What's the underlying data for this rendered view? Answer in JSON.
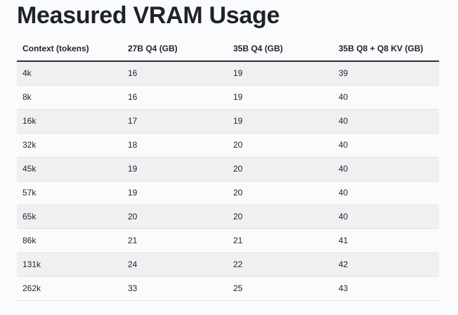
{
  "page": {
    "title": "Measured VRAM Usage"
  },
  "table": {
    "headers": [
      "Context (tokens)",
      "27B Q4 (GB)",
      "35B Q4 (GB)",
      "35B Q8 + Q8 KV (GB)"
    ],
    "rows": [
      [
        "4k",
        "16",
        "19",
        "39"
      ],
      [
        "8k",
        "16",
        "19",
        "40"
      ],
      [
        "16k",
        "17",
        "19",
        "40"
      ],
      [
        "32k",
        "18",
        "20",
        "40"
      ],
      [
        "45k",
        "19",
        "20",
        "40"
      ],
      [
        "57k",
        "19",
        "20",
        "40"
      ],
      [
        "65k",
        "20",
        "20",
        "40"
      ],
      [
        "86k",
        "21",
        "21",
        "41"
      ],
      [
        "131k",
        "24",
        "22",
        "42"
      ],
      [
        "262k",
        "33",
        "25",
        "43"
      ]
    ]
  },
  "colors": {
    "background": "#fafbfc",
    "text": "#1f2328",
    "stripe": "#eff0f2",
    "header_rule": "#2b2f33",
    "row_rule": "#e3e5e8"
  }
}
